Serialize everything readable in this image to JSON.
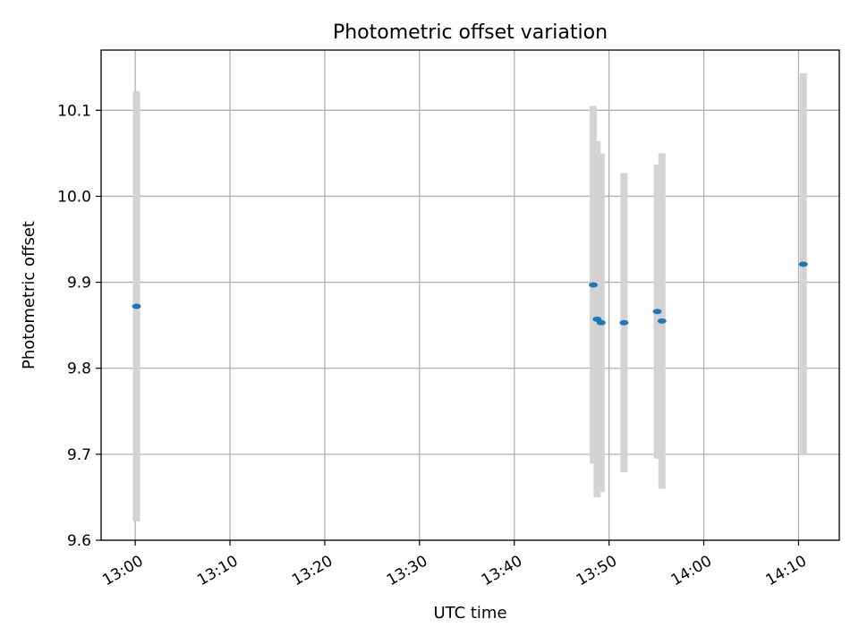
{
  "chart_data": {
    "type": "scatter",
    "title": "Photometric offset variation",
    "xlabel": "UTC time",
    "ylabel": "Photometric offset",
    "x_ticks": [
      "13:00",
      "13:10",
      "13:20",
      "13:30",
      "13:40",
      "13:50",
      "14:00",
      "14:10"
    ],
    "y_ticks": [
      "9.6",
      "9.7",
      "9.8",
      "9.9",
      "10.0",
      "10.1"
    ],
    "xlim": [
      "12:56.4",
      "14:14.3"
    ],
    "ylim": [
      9.6,
      10.17
    ],
    "grid": true,
    "colors": {
      "point": "#1f77b4",
      "errorbar": "#d3d3d3",
      "grid": "#b0b0b0"
    },
    "series": [
      {
        "points": [
          {
            "x": "13:00:08",
            "y": 9.872,
            "yerr": 0.25
          },
          {
            "x": "13:48:20",
            "y": 9.897,
            "yerr": 0.208
          },
          {
            "x": "13:48:45",
            "y": 9.857,
            "yerr": 0.207
          },
          {
            "x": "13:49:10",
            "y": 9.853,
            "yerr": 0.197
          },
          {
            "x": "13:51:35",
            "y": 9.853,
            "yerr": 0.174
          },
          {
            "x": "13:55:05",
            "y": 9.866,
            "yerr": 0.171
          },
          {
            "x": "13:55:35",
            "y": 9.855,
            "yerr": 0.195
          },
          {
            "x": "14:10:30",
            "y": 9.921,
            "yerr": 0.222
          }
        ]
      }
    ]
  }
}
